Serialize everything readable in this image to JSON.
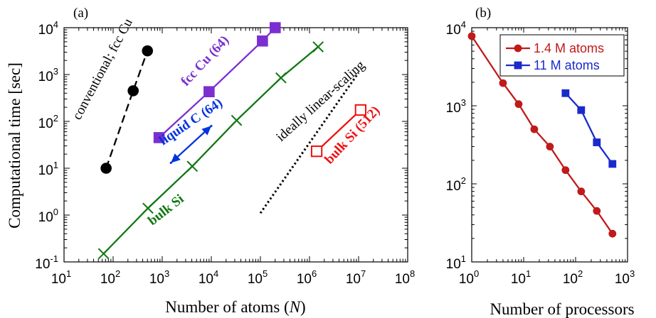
{
  "chart_data": [
    {
      "type": "line",
      "panel_label": "(a)",
      "xlabel": "Number of atoms (N)",
      "ylabel": "Computational time [sec]",
      "xscale": "log",
      "yscale": "log",
      "xlim": [
        10,
        100000000
      ],
      "ylim": [
        0.1,
        10000
      ],
      "x_ticks": [
        {
          "base": "10",
          "exp": "1"
        },
        {
          "base": "10",
          "exp": "2"
        },
        {
          "base": "10",
          "exp": "3"
        },
        {
          "base": "10",
          "exp": "4"
        },
        {
          "base": "10",
          "exp": "5"
        },
        {
          "base": "10",
          "exp": "6"
        },
        {
          "base": "10",
          "exp": "7"
        },
        {
          "base": "10",
          "exp": "8"
        }
      ],
      "y_ticks": [
        {
          "base": "10",
          "exp": "-1"
        },
        {
          "base": "10",
          "exp": "0"
        },
        {
          "base": "10",
          "exp": "1"
        },
        {
          "base": "10",
          "exp": "2"
        },
        {
          "base": "10",
          "exp": "3"
        },
        {
          "base": "10",
          "exp": "4"
        }
      ],
      "series": [
        {
          "name": "conventional; fcc Cu",
          "color": "#000000",
          "marker": "circle",
          "dashed": true,
          "x": [
            72,
            256,
            500
          ],
          "y": [
            10,
            450,
            3200
          ]
        },
        {
          "name": "fcc Cu (64)",
          "color": "#7b2fd0",
          "marker": "square",
          "x": [
            864,
            9000,
            110000,
            200000
          ],
          "y": [
            45,
            430,
            5200,
            10000
          ]
        },
        {
          "name": "liquid C (64)",
          "color": "#0033dd",
          "marker": "triangle",
          "x": [
            1500,
            10000
          ],
          "y": [
            13,
            80
          ],
          "arrows": true
        },
        {
          "name": "bulk Si",
          "color": "#117711",
          "marker": "x",
          "x": [
            64,
            512,
            4096,
            32768,
            262144,
            1500000
          ],
          "y": [
            0.15,
            1.4,
            11,
            105,
            850,
            3900
          ]
        },
        {
          "name": "bulk Si (512)",
          "color": "#ee1111",
          "marker": "open-square",
          "x": [
            1400000,
            11000000
          ],
          "y": [
            23,
            175
          ]
        },
        {
          "name": "ideally linear-scaling",
          "color": "#000000",
          "marker": "none",
          "dotted": true,
          "x": [
            100000,
            10000000
          ],
          "y": [
            1.1,
            1100
          ]
        }
      ],
      "annotations": [
        {
          "text": "conventional; fcc Cu",
          "color": "#000000"
        },
        {
          "text": "fcc Cu (64)",
          "color": "#7b2fd0"
        },
        {
          "text": "liquid C (64)",
          "color": "#0033dd"
        },
        {
          "text": "ideally linear-scaling",
          "color": "#000000"
        },
        {
          "text": "bulk Si",
          "color": "#117711"
        },
        {
          "text": "bulk Si (512)",
          "color": "#ee1111"
        }
      ]
    },
    {
      "type": "line",
      "panel_label": "(b)",
      "xlabel": "Number of processors",
      "ylabel": "",
      "xscale": "log",
      "yscale": "log",
      "xlim": [
        1,
        1000
      ],
      "ylim": [
        10,
        10000
      ],
      "x_ticks": [
        {
          "base": "10",
          "exp": "0"
        },
        {
          "base": "10",
          "exp": "1"
        },
        {
          "base": "10",
          "exp": "2"
        },
        {
          "base": "10",
          "exp": "3"
        }
      ],
      "y_ticks": [
        {
          "base": "10",
          "exp": "1"
        },
        {
          "base": "10",
          "exp": "2"
        },
        {
          "base": "10",
          "exp": "3"
        },
        {
          "base": "10",
          "exp": "4"
        }
      ],
      "legend_position": "top-right",
      "series": [
        {
          "name": "1.4 M atoms",
          "color": "#c01a1a",
          "marker": "circle",
          "x": [
            1,
            4,
            8,
            16,
            32,
            64,
            128,
            256,
            512
          ],
          "y": [
            7800,
            1950,
            1050,
            500,
            300,
            150,
            80,
            45,
            23
          ]
        },
        {
          "name": "11 M atoms",
          "color": "#1a2acc",
          "marker": "square",
          "x": [
            64,
            128,
            256,
            512
          ],
          "y": [
            1450,
            880,
            340,
            180
          ]
        }
      ]
    }
  ]
}
